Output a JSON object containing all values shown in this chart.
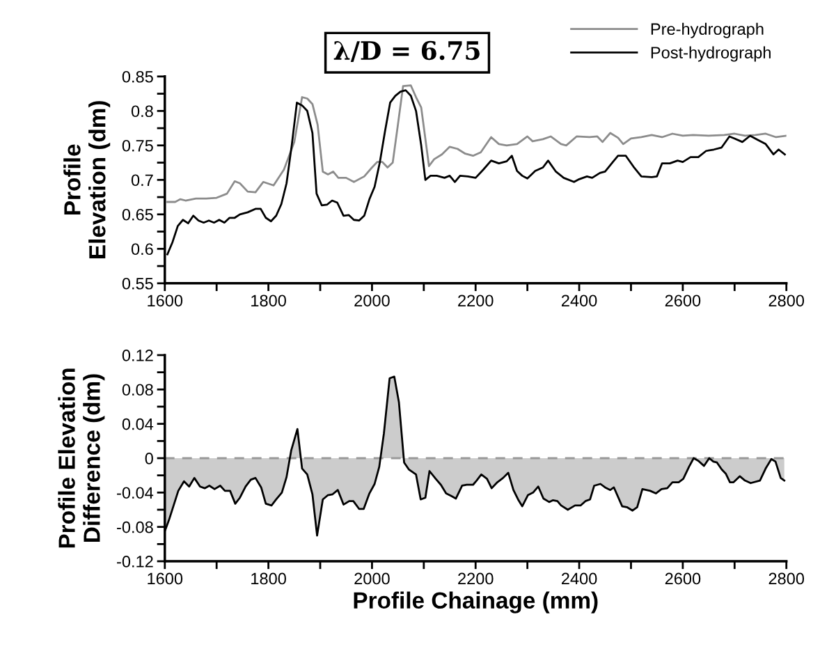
{
  "chart_data": [
    {
      "type": "line",
      "title": "λ/D = 6.75",
      "ylabel": "Profile\nElevation (dm)",
      "legend": "top right",
      "xlim": [
        1600,
        2800
      ],
      "xticks": [
        1600,
        {
          "value": 1700,
          "label": null
        },
        1800,
        {
          "value": 1900,
          "label": null
        },
        2000,
        {
          "value": 2100,
          "label": null
        },
        2200,
        {
          "value": 2300,
          "label": null
        },
        2400,
        {
          "value": 2500,
          "label": null
        },
        2600,
        {
          "value": 2700,
          "label": null
        },
        2800
      ],
      "ylim": [
        0.55,
        0.85
      ],
      "yticks": [
        0.55,
        {
          "value": 0.575,
          "label": null
        },
        0.6,
        {
          "value": 0.625,
          "label": null
        },
        0.65,
        {
          "value": 0.675,
          "label": null
        },
        0.7,
        {
          "value": 0.725,
          "label": null
        },
        0.75,
        {
          "value": 0.775,
          "label": null
        },
        0.8,
        {
          "value": 0.825,
          "label": null
        },
        0.85
      ],
      "series": [
        {
          "name": "Pre-hydrograph",
          "color": "#8c8c8c",
          "x": [
            1605,
            1620,
            1630,
            1640,
            1660,
            1680,
            1700,
            1720,
            1735,
            1745,
            1760,
            1775,
            1790,
            1810,
            1830,
            1850,
            1865,
            1875,
            1885,
            1895,
            1905,
            1915,
            1925,
            1935,
            1950,
            1965,
            1985,
            2000,
            2010,
            2020,
            2030,
            2040,
            2050,
            2060,
            2075,
            2085,
            2095,
            2110,
            2120,
            2135,
            2150,
            2165,
            2180,
            2195,
            2210,
            2230,
            2245,
            2260,
            2280,
            2300,
            2310,
            2330,
            2345,
            2365,
            2375,
            2395,
            2420,
            2435,
            2445,
            2460,
            2475,
            2485,
            2500,
            2520,
            2540,
            2560,
            2580,
            2600,
            2620,
            2650,
            2680,
            2700,
            2720,
            2740,
            2760,
            2780,
            2800
          ],
          "values": [
            0.668,
            0.668,
            0.672,
            0.67,
            0.673,
            0.673,
            0.674,
            0.68,
            0.698,
            0.695,
            0.683,
            0.682,
            0.697,
            0.692,
            0.715,
            0.755,
            0.82,
            0.818,
            0.81,
            0.78,
            0.712,
            0.708,
            0.712,
            0.703,
            0.703,
            0.697,
            0.705,
            0.718,
            0.726,
            0.726,
            0.718,
            0.725,
            0.78,
            0.836,
            0.837,
            0.82,
            0.805,
            0.72,
            0.73,
            0.737,
            0.748,
            0.745,
            0.738,
            0.735,
            0.74,
            0.762,
            0.752,
            0.75,
            0.752,
            0.763,
            0.756,
            0.759,
            0.763,
            0.752,
            0.75,
            0.763,
            0.762,
            0.763,
            0.755,
            0.768,
            0.761,
            0.752,
            0.76,
            0.762,
            0.765,
            0.762,
            0.767,
            0.764,
            0.765,
            0.764,
            0.765,
            0.767,
            0.764,
            0.765,
            0.767,
            0.762,
            0.764
          ]
        },
        {
          "name": "Post-hydrograph",
          "color": "#000000",
          "x": [
            1605,
            1615,
            1625,
            1635,
            1645,
            1655,
            1665,
            1675,
            1685,
            1695,
            1705,
            1715,
            1725,
            1735,
            1745,
            1760,
            1775,
            1785,
            1795,
            1805,
            1815,
            1825,
            1835,
            1845,
            1855,
            1865,
            1875,
            1885,
            1893,
            1903,
            1913,
            1923,
            1933,
            1945,
            1955,
            1965,
            1975,
            1985,
            1995,
            2005,
            2015,
            2025,
            2035,
            2045,
            2055,
            2065,
            2075,
            2085,
            2095,
            2103,
            2113,
            2125,
            2140,
            2150,
            2160,
            2170,
            2185,
            2200,
            2215,
            2230,
            2245,
            2260,
            2270,
            2280,
            2290,
            2300,
            2315,
            2330,
            2340,
            2355,
            2370,
            2390,
            2400,
            2415,
            2425,
            2440,
            2450,
            2465,
            2475,
            2490,
            2505,
            2520,
            2540,
            2550,
            2560,
            2575,
            2590,
            2600,
            2615,
            2630,
            2645,
            2660,
            2675,
            2690,
            2700,
            2715,
            2730,
            2745,
            2760,
            2775,
            2785,
            2797
          ],
          "values": [
            0.592,
            0.61,
            0.633,
            0.642,
            0.637,
            0.648,
            0.641,
            0.638,
            0.641,
            0.638,
            0.642,
            0.638,
            0.645,
            0.645,
            0.65,
            0.653,
            0.658,
            0.658,
            0.645,
            0.64,
            0.648,
            0.665,
            0.695,
            0.75,
            0.812,
            0.808,
            0.8,
            0.768,
            0.68,
            0.663,
            0.664,
            0.67,
            0.667,
            0.648,
            0.649,
            0.642,
            0.641,
            0.648,
            0.672,
            0.69,
            0.725,
            0.77,
            0.812,
            0.822,
            0.828,
            0.83,
            0.822,
            0.8,
            0.75,
            0.7,
            0.706,
            0.706,
            0.703,
            0.706,
            0.697,
            0.706,
            0.705,
            0.703,
            0.715,
            0.728,
            0.724,
            0.727,
            0.735,
            0.713,
            0.706,
            0.702,
            0.713,
            0.718,
            0.728,
            0.712,
            0.703,
            0.697,
            0.701,
            0.705,
            0.703,
            0.71,
            0.712,
            0.726,
            0.735,
            0.735,
            0.719,
            0.705,
            0.704,
            0.705,
            0.724,
            0.724,
            0.728,
            0.726,
            0.733,
            0.733,
            0.742,
            0.744,
            0.747,
            0.763,
            0.76,
            0.755,
            0.764,
            0.758,
            0.752,
            0.737,
            0.744,
            0.737
          ]
        }
      ]
    },
    {
      "type": "area",
      "xlabel": "Profile Chainage (mm)",
      "ylabel": "Profile Elevation\nDifference (dm)",
      "xlim": [
        1600,
        2800
      ],
      "xticks": [
        1600,
        {
          "value": 1700,
          "label": null
        },
        1800,
        {
          "value": 1900,
          "label": null
        },
        2000,
        {
          "value": 2100,
          "label": null
        },
        2200,
        {
          "value": 2300,
          "label": null
        },
        2400,
        {
          "value": 2500,
          "label": null
        },
        2600,
        {
          "value": 2700,
          "label": null
        },
        2800
      ],
      "ylim": [
        -0.12,
        0.12
      ],
      "yticks": [
        -0.12,
        {
          "value": -0.1,
          "label": null
        },
        -0.08,
        {
          "value": -0.06,
          "label": null
        },
        -0.04,
        {
          "value": -0.02,
          "label": null
        },
        0,
        {
          "value": 0.02,
          "label": null
        },
        0.04,
        {
          "value": 0.06,
          "label": null
        },
        0.08,
        {
          "value": 0.1,
          "label": null
        },
        0.12
      ],
      "ref_lines": [
        {
          "axis": "y",
          "value": 0,
          "color": "#999999",
          "line_style": "dashed"
        }
      ],
      "series": [
        {
          "color": "#000000",
          "x": [
            1600,
            1608,
            1626,
            1637,
            1647,
            1657,
            1668,
            1677,
            1686,
            1696,
            1707,
            1716,
            1726,
            1736,
            1745,
            1756,
            1766,
            1775,
            1786,
            1795,
            1806,
            1815,
            1826,
            1835,
            1844,
            1856,
            1865,
            1875,
            1885,
            1894,
            1905,
            1915,
            1924,
            1934,
            1945,
            1956,
            1964,
            1975,
            1984,
            1995,
            2005,
            2014,
            2023,
            2034,
            2043,
            2052,
            2062,
            2071,
            2085,
            2094,
            2103,
            2111,
            2123,
            2133,
            2143,
            2153,
            2162,
            2174,
            2183,
            2195,
            2202,
            2211,
            2222,
            2231,
            2242,
            2253,
            2263,
            2273,
            2282,
            2290,
            2301,
            2311,
            2321,
            2331,
            2342,
            2349,
            2358,
            2365,
            2378,
            2392,
            2403,
            2412,
            2421,
            2429,
            2441,
            2450,
            2460,
            2467,
            2483,
            2492,
            2503,
            2512,
            2522,
            2537,
            2548,
            2559,
            2570,
            2580,
            2592,
            2601,
            2612,
            2621,
            2630,
            2641,
            2651,
            2659,
            2666,
            2675,
            2683,
            2691,
            2698,
            2710,
            2720,
            2731,
            2749,
            2760,
            2771,
            2779,
            2789,
            2796
          ],
          "values": [
            -0.085,
            -0.072,
            -0.038,
            -0.027,
            -0.033,
            -0.023,
            -0.033,
            -0.035,
            -0.032,
            -0.036,
            -0.032,
            -0.038,
            -0.038,
            -0.053,
            -0.046,
            -0.033,
            -0.025,
            -0.023,
            -0.034,
            -0.053,
            -0.055,
            -0.048,
            -0.04,
            -0.022,
            0.009,
            0.034,
            -0.012,
            -0.019,
            -0.042,
            -0.09,
            -0.048,
            -0.043,
            -0.042,
            -0.037,
            -0.054,
            -0.05,
            -0.05,
            -0.059,
            -0.059,
            -0.041,
            -0.03,
            -0.01,
            0.029,
            0.093,
            0.095,
            0.065,
            -0.005,
            -0.013,
            -0.019,
            -0.048,
            -0.046,
            -0.015,
            -0.024,
            -0.031,
            -0.041,
            -0.044,
            -0.047,
            -0.032,
            -0.031,
            -0.031,
            -0.026,
            -0.019,
            -0.024,
            -0.035,
            -0.028,
            -0.023,
            -0.017,
            -0.037,
            -0.048,
            -0.056,
            -0.043,
            -0.04,
            -0.033,
            -0.047,
            -0.051,
            -0.049,
            -0.05,
            -0.055,
            -0.06,
            -0.055,
            -0.055,
            -0.05,
            -0.048,
            -0.032,
            -0.03,
            -0.034,
            -0.037,
            -0.034,
            -0.056,
            -0.057,
            -0.061,
            -0.057,
            -0.036,
            -0.038,
            -0.041,
            -0.036,
            -0.035,
            -0.028,
            -0.028,
            -0.024,
            -0.01,
            0,
            -0.003,
            -0.009,
            0,
            -0.004,
            -0.005,
            -0.013,
            -0.018,
            -0.028,
            -0.028,
            -0.021,
            -0.026,
            -0.029,
            -0.026,
            -0.012,
            -0.001,
            -0.004,
            -0.023,
            -0.026
          ]
        }
      ]
    }
  ]
}
